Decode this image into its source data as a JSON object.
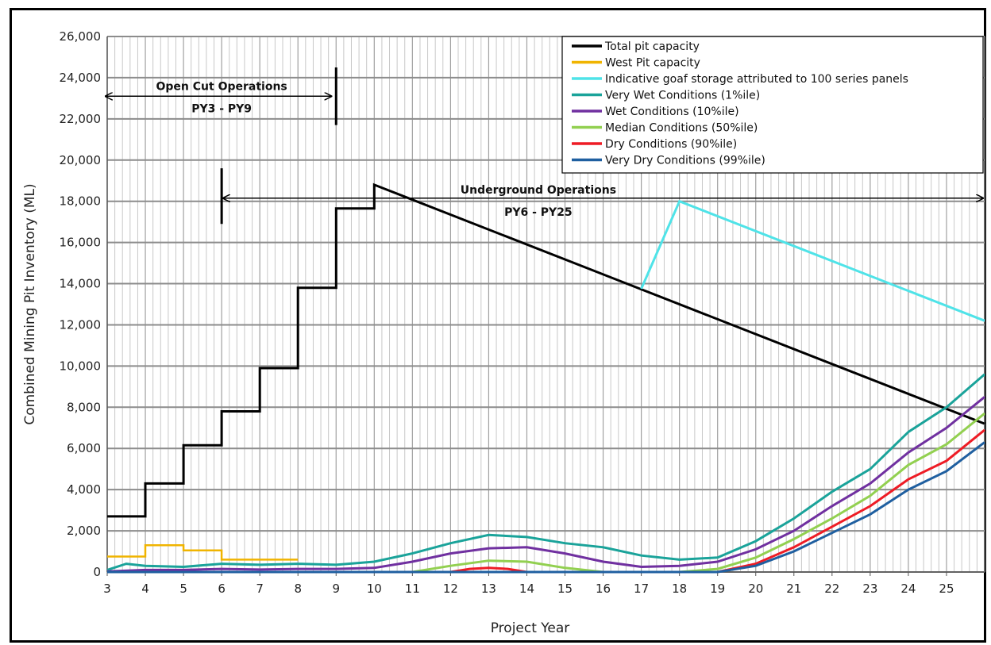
{
  "chart_data": {
    "type": "line",
    "title": "",
    "xlabel": "Project Year",
    "ylabel": "Combined Mining Pit Inventory (ML)",
    "xlim": [
      3,
      26
    ],
    "ylim": [
      0,
      26000
    ],
    "xticks": [
      3,
      4,
      5,
      6,
      7,
      8,
      9,
      10,
      11,
      12,
      13,
      14,
      15,
      16,
      17,
      18,
      19,
      20,
      21,
      22,
      23,
      24,
      25
    ],
    "yticks": [
      0,
      2000,
      4000,
      6000,
      8000,
      10000,
      12000,
      14000,
      16000,
      18000,
      20000,
      22000,
      24000,
      26000
    ],
    "ytick_labels": [
      "0",
      "2,000",
      "4,000",
      "6,000",
      "8,000",
      "10,000",
      "12,000",
      "14,000",
      "16,000",
      "18,000",
      "20,000",
      "22,000",
      "24,000",
      "26,000"
    ],
    "grid": true,
    "legend_position": "top-right",
    "annotations": [
      {
        "text": "Open Cut Operations",
        "subtext": "PY3 - PY9",
        "x_start": 3,
        "x_end": 9
      },
      {
        "text": "Underground Operations",
        "subtext": "PY6 - PY25",
        "x_start": 6,
        "x_end": 26
      }
    ],
    "series": [
      {
        "name": "Total pit capacity",
        "color": "#000000",
        "width": 3,
        "points": [
          [
            3,
            2700
          ],
          [
            4,
            2700
          ],
          [
            4,
            4300
          ],
          [
            5,
            4300
          ],
          [
            5,
            6150
          ],
          [
            6,
            6150
          ],
          [
            6,
            7800
          ],
          [
            7,
            7800
          ],
          [
            7,
            9900
          ],
          [
            8,
            9900
          ],
          [
            8,
            13800
          ],
          [
            9,
            13800
          ],
          [
            9,
            17650
          ],
          [
            10,
            17650
          ],
          [
            10,
            18800
          ],
          [
            26,
            7200
          ]
        ]
      },
      {
        "name": "West Pit capacity",
        "color": "#f0b400",
        "width": 2.5,
        "points": [
          [
            3,
            750
          ],
          [
            4,
            750
          ],
          [
            4,
            1300
          ],
          [
            5,
            1300
          ],
          [
            5,
            1050
          ],
          [
            6,
            1050
          ],
          [
            6,
            600
          ],
          [
            8,
            600
          ]
        ]
      },
      {
        "name": "Indicative goaf storage attributed to 100 series panels",
        "color": "#4fe3e8",
        "width": 3,
        "points": [
          [
            17,
            13750
          ],
          [
            18,
            18000
          ],
          [
            26,
            12200
          ]
        ]
      },
      {
        "name": "Very Wet Conditions (1%ile)",
        "color": "#1aa39a",
        "width": 3,
        "points": [
          [
            3,
            100
          ],
          [
            3.5,
            400
          ],
          [
            4,
            300
          ],
          [
            5,
            250
          ],
          [
            6,
            400
          ],
          [
            7,
            350
          ],
          [
            8,
            400
          ],
          [
            9,
            350
          ],
          [
            10,
            500
          ],
          [
            11,
            900
          ],
          [
            12,
            1400
          ],
          [
            13,
            1800
          ],
          [
            14,
            1700
          ],
          [
            15,
            1400
          ],
          [
            16,
            1200
          ],
          [
            17,
            800
          ],
          [
            18,
            600
          ],
          [
            19,
            700
          ],
          [
            20,
            1500
          ],
          [
            21,
            2600
          ],
          [
            22,
            3900
          ],
          [
            23,
            5000
          ],
          [
            24,
            6800
          ],
          [
            25,
            8000
          ],
          [
            26,
            9600
          ]
        ]
      },
      {
        "name": "Wet Conditions (10%ile)",
        "color": "#7030a0",
        "width": 3,
        "points": [
          [
            3,
            30
          ],
          [
            4,
            100
          ],
          [
            5,
            100
          ],
          [
            6,
            150
          ],
          [
            7,
            120
          ],
          [
            8,
            150
          ],
          [
            9,
            150
          ],
          [
            10,
            200
          ],
          [
            11,
            500
          ],
          [
            12,
            900
          ],
          [
            13,
            1150
          ],
          [
            14,
            1200
          ],
          [
            15,
            900
          ],
          [
            16,
            500
          ],
          [
            17,
            250
          ],
          [
            18,
            300
          ],
          [
            19,
            500
          ],
          [
            20,
            1100
          ],
          [
            21,
            2000
          ],
          [
            22,
            3200
          ],
          [
            23,
            4300
          ],
          [
            24,
            5800
          ],
          [
            25,
            7000
          ],
          [
            26,
            8500
          ]
        ]
      },
      {
        "name": "Median Conditions (50%ile)",
        "color": "#92d050",
        "width": 3,
        "points": [
          [
            3,
            0
          ],
          [
            11,
            0
          ],
          [
            12,
            300
          ],
          [
            13,
            550
          ],
          [
            14,
            500
          ],
          [
            15,
            200
          ],
          [
            16,
            0
          ],
          [
            18,
            0
          ],
          [
            19,
            150
          ],
          [
            20,
            700
          ],
          [
            21,
            1600
          ],
          [
            22,
            2600
          ],
          [
            23,
            3700
          ],
          [
            24,
            5200
          ],
          [
            25,
            6200
          ],
          [
            26,
            7700
          ]
        ]
      },
      {
        "name": "Dry Conditions (90%ile)",
        "color": "#ee1c25",
        "width": 3,
        "points": [
          [
            3,
            0
          ],
          [
            12,
            0
          ],
          [
            12.5,
            150
          ],
          [
            13,
            200
          ],
          [
            13.5,
            150
          ],
          [
            14,
            0
          ],
          [
            19,
            0
          ],
          [
            20,
            400
          ],
          [
            21,
            1200
          ],
          [
            22,
            2200
          ],
          [
            23,
            3200
          ],
          [
            24,
            4500
          ],
          [
            25,
            5400
          ],
          [
            26,
            6900
          ]
        ]
      },
      {
        "name": "Very Dry Conditions (99%ile)",
        "color": "#1f5fa0",
        "width": 3,
        "points": [
          [
            3,
            0
          ],
          [
            19,
            0
          ],
          [
            20,
            300
          ],
          [
            21,
            1000
          ],
          [
            22,
            1900
          ],
          [
            23,
            2800
          ],
          [
            24,
            4000
          ],
          [
            25,
            4900
          ],
          [
            26,
            6300
          ]
        ]
      }
    ]
  }
}
